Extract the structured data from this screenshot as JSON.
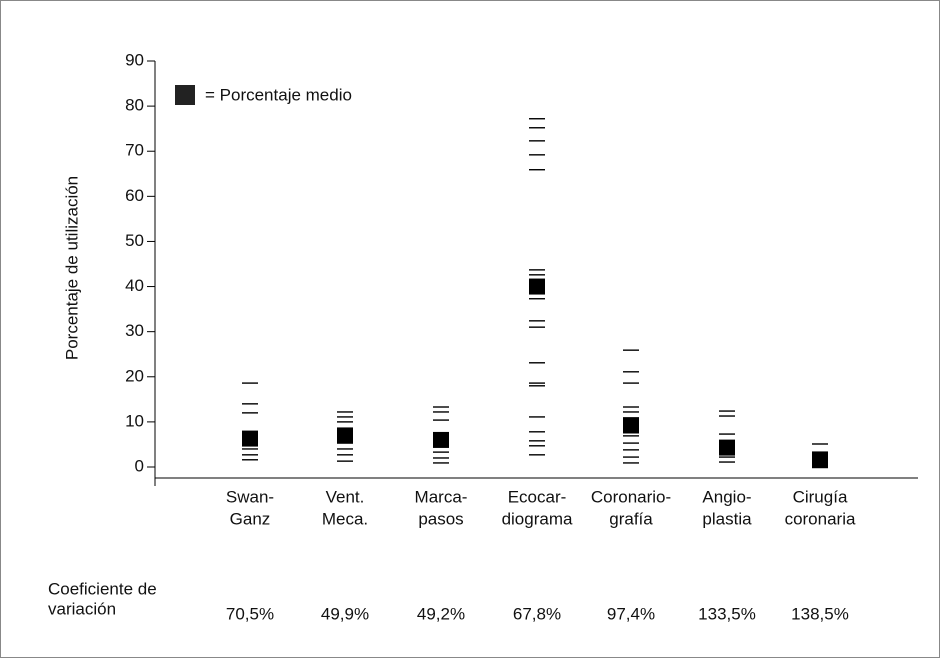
{
  "chart_data": {
    "type": "dot",
    "y_label": "Porcentaje de utilización",
    "legend_label": "= Porcentaje medio",
    "categories": [
      [
        "Swan-",
        "Ganz"
      ],
      [
        "Vent.",
        "Meca."
      ],
      [
        "Marca-",
        "pasos"
      ],
      [
        "Ecocar-",
        "diograma"
      ],
      [
        "Coronario-",
        "grafía"
      ],
      [
        "Angio-",
        "plastia"
      ],
      [
        "Cirugía",
        "coronaria"
      ]
    ],
    "points": [
      [
        18.6,
        14,
        12,
        7.8,
        6.7,
        5.3,
        4,
        2.7,
        1.6
      ],
      [
        12.2,
        11.1,
        10,
        8.6,
        7.5,
        6.7,
        5.3,
        4,
        2.7,
        1.3
      ],
      [
        13.3,
        12.2,
        10.4,
        7.5,
        6.7,
        4.9,
        3.3,
        2,
        0.9
      ],
      [
        77.2,
        75.2,
        72.3,
        69.2,
        65.9,
        43.7,
        42.6,
        41.5,
        38.4,
        37.3,
        32.4,
        31,
        23.1,
        18.6,
        18,
        11.1,
        7.8,
        5.8,
        4.7,
        2.7
      ],
      [
        25.9,
        21.1,
        18.6,
        13.3,
        12.2,
        10.9,
        9.5,
        8.2,
        6.9,
        5.3,
        3.8,
        2.2,
        0.9
      ],
      [
        12.4,
        11.3,
        7.3,
        5.8,
        4.4,
        3.3,
        2.2,
        1.1
      ],
      [
        5.1,
        3.3,
        2.7,
        1.8,
        1.1,
        0.4
      ]
    ],
    "means": [
      6.3,
      7,
      6,
      40,
      9.2,
      4.3,
      1.5
    ],
    "color": "#000000",
    "ylim": [
      0,
      90
    ],
    "yticks": [
      0,
      10,
      20,
      30,
      40,
      50,
      60,
      70,
      80,
      90
    ],
    "cv_title": [
      "Coeficiente de",
      "variación"
    ],
    "cv_labels": [
      "70,5%",
      "49,9%",
      "49,2%",
      "67,8%",
      "97,4%",
      "133,5%",
      "138,5%"
    ]
  }
}
